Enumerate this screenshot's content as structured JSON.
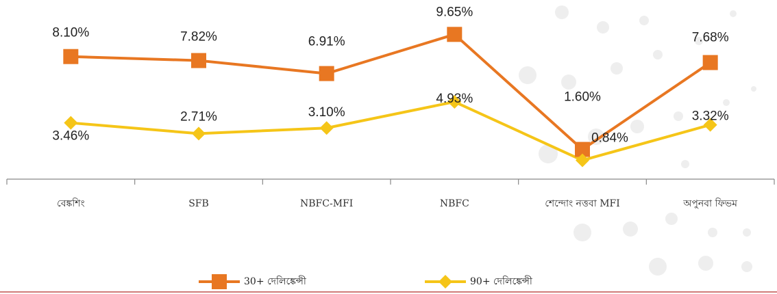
{
  "chart_data": {
    "type": "line",
    "categories": [
      "বেঙ্কশিং",
      "SFB",
      "NBFC-MFI",
      "NBFC",
      "শেন্দোং নত্তবা MFI",
      "অপুনবা ফিভম"
    ],
    "series": [
      {
        "name": "30+ দেলিঙ্কেন্সী",
        "color": "#E87722",
        "marker": "square",
        "values": [
          8.1,
          7.82,
          6.91,
          9.65,
          1.6,
          7.68
        ],
        "value_labels": [
          "8.10%",
          "7.82%",
          "6.91%",
          "9.65%",
          "1.60%",
          "7.68%"
        ]
      },
      {
        "name": "90+ দেলিঙ্কেন্সী",
        "color": "#F5C518",
        "marker": "diamond",
        "values": [
          3.46,
          2.71,
          3.1,
          4.93,
          0.84,
          3.32
        ],
        "value_labels": [
          "3.46%",
          "2.71%",
          "3.10%",
          "4.93%",
          "0.84%",
          "3.32%"
        ]
      }
    ],
    "ylim": [
      0,
      10
    ],
    "grid": false,
    "legend": "bottom"
  }
}
